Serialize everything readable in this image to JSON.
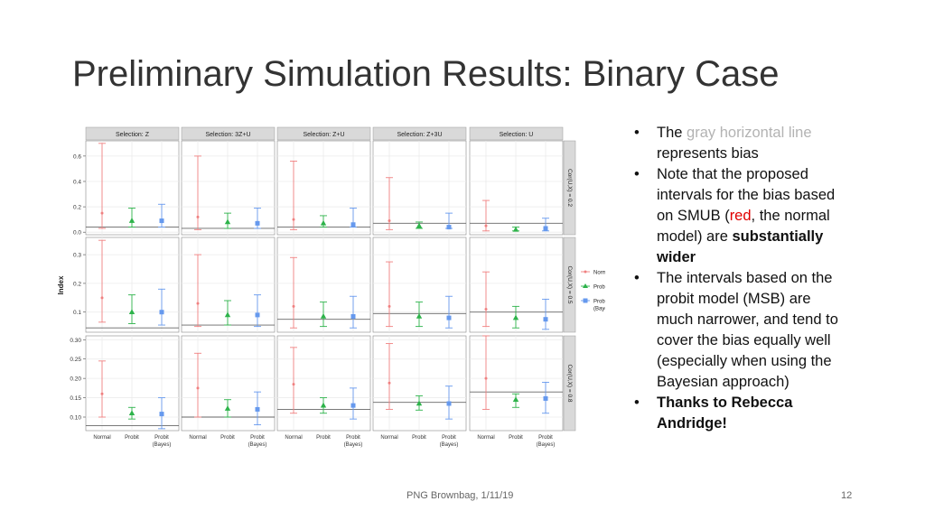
{
  "slide": {
    "title": "Preliminary Simulation Results: Binary Case",
    "footer": "PNG Brownbag, 1/11/19",
    "page_number": "12",
    "bullets": [
      {
        "parts": [
          {
            "text": "The "
          },
          {
            "text": "gray horizontal line",
            "style": "gray"
          },
          {
            "text": " represents bias"
          }
        ]
      },
      {
        "parts": [
          {
            "text": "Note that the proposed intervals for the bias based on SMUB ("
          },
          {
            "text": "red",
            "style": "red"
          },
          {
            "text": ", the normal model) are "
          },
          {
            "text": "substantially wider",
            "style": "bold"
          }
        ]
      },
      {
        "parts": [
          {
            "text": "The intervals based on the probit model (MSB) are much narrower, and tend to cover the bias equally well (especially when using the Bayesian approach)"
          }
        ]
      },
      {
        "parts": [
          {
            "text": "Thanks to Rebecca Andridge!",
            "style": "bold"
          }
        ]
      }
    ]
  },
  "chart_data": {
    "type": "scatter",
    "ylabel": "Index",
    "columns": [
      "Selection: Z",
      "Selection: 3Z+U",
      "Selection: Z+U",
      "Selection: Z+3U",
      "Selection: U"
    ],
    "rows": [
      "Cor(U,X) = 0.2",
      "Cor(U,X) = 0.5",
      "Cor(U,X) = 0.8"
    ],
    "x_categories": [
      "Normal",
      "Probit",
      "Probit\n(Bayes)"
    ],
    "legend": {
      "position": "right",
      "entries": [
        "Normal",
        "Probit",
        "Probit\n(Bayes)"
      ]
    },
    "colors": {
      "Normal": "#F08080",
      "Probit": "#2DB34A",
      "Probit (Bayes)": "#6699EE",
      "bias_line": "#666666",
      "strip": "#D9D9D9",
      "grid": "#EBEBEB"
    },
    "grid": true,
    "row_axes": [
      {
        "ylim": [
          -0.02,
          0.72
        ],
        "ticks": [
          0.0,
          0.2,
          0.4,
          0.6
        ],
        "tick_labels": [
          "0.0",
          "0.2",
          "0.4",
          "0.6"
        ]
      },
      {
        "ylim": [
          0.03,
          0.36
        ],
        "ticks": [
          0.1,
          0.2,
          0.3
        ],
        "tick_labels": [
          "0.1",
          "0.2",
          "0.3"
        ]
      },
      {
        "ylim": [
          0.065,
          0.31
        ],
        "ticks": [
          0.1,
          0.15,
          0.2,
          0.25,
          0.3
        ],
        "tick_labels": [
          "0.10",
          "0.15",
          "0.20",
          "0.25",
          "0.30"
        ]
      }
    ],
    "panels": [
      [
        {
          "bias": 0.04,
          "normal": [
            0.03,
            0.15,
            0.7
          ],
          "probit": [
            0.04,
            0.09,
            0.19
          ],
          "bayes": [
            0.04,
            0.09,
            0.22
          ]
        },
        {
          "bias": 0.03,
          "normal": [
            0.02,
            0.12,
            0.6
          ],
          "probit": [
            0.03,
            0.08,
            0.15
          ],
          "bayes": [
            0.03,
            0.07,
            0.19
          ]
        },
        {
          "bias": 0.04,
          "normal": [
            0.02,
            0.1,
            0.56
          ],
          "probit": [
            0.04,
            0.07,
            0.13
          ],
          "bayes": [
            0.04,
            0.06,
            0.19
          ]
        },
        {
          "bias": 0.07,
          "normal": [
            0.02,
            0.09,
            0.43
          ],
          "probit": [
            0.03,
            0.05,
            0.08
          ],
          "bayes": [
            0.03,
            0.04,
            0.15
          ]
        },
        {
          "bias": 0.07,
          "normal": [
            0.01,
            0.05,
            0.25
          ],
          "probit": [
            0.01,
            0.02,
            0.04
          ],
          "bayes": [
            0.01,
            0.03,
            0.11
          ]
        }
      ],
      [
        {
          "bias": 0.045,
          "normal": [
            0.065,
            0.15,
            0.35
          ],
          "probit": [
            0.06,
            0.1,
            0.16
          ],
          "bayes": [
            0.055,
            0.1,
            0.18
          ]
        },
        {
          "bias": 0.055,
          "normal": [
            0.05,
            0.13,
            0.3
          ],
          "probit": [
            0.055,
            0.09,
            0.14
          ],
          "bayes": [
            0.05,
            0.09,
            0.16
          ]
        },
        {
          "bias": 0.075,
          "normal": [
            0.045,
            0.12,
            0.29
          ],
          "probit": [
            0.05,
            0.085,
            0.135
          ],
          "bayes": [
            0.045,
            0.085,
            0.155
          ]
        },
        {
          "bias": 0.095,
          "normal": [
            0.05,
            0.12,
            0.275
          ],
          "probit": [
            0.05,
            0.085,
            0.135
          ],
          "bayes": [
            0.045,
            0.08,
            0.155
          ]
        },
        {
          "bias": 0.1,
          "normal": [
            0.05,
            0.11,
            0.24
          ],
          "probit": [
            0.045,
            0.08,
            0.12
          ],
          "bayes": [
            0.04,
            0.075,
            0.145
          ]
        }
      ],
      [
        {
          "bias": 0.078,
          "normal": [
            0.1,
            0.16,
            0.245
          ],
          "probit": [
            0.095,
            0.11,
            0.125
          ],
          "bayes": [
            0.07,
            0.108,
            0.15
          ]
        },
        {
          "bias": 0.1,
          "normal": [
            0.1,
            0.175,
            0.265
          ],
          "probit": [
            0.1,
            0.122,
            0.145
          ],
          "bayes": [
            0.08,
            0.12,
            0.165
          ]
        },
        {
          "bias": 0.12,
          "normal": [
            0.11,
            0.185,
            0.28
          ],
          "probit": [
            0.11,
            0.13,
            0.15
          ],
          "bayes": [
            0.095,
            0.13,
            0.175
          ]
        },
        {
          "bias": 0.138,
          "normal": [
            0.12,
            0.188,
            0.29
          ],
          "probit": [
            0.118,
            0.135,
            0.155
          ],
          "bayes": [
            0.095,
            0.135,
            0.18
          ]
        },
        {
          "bias": 0.165,
          "normal": [
            0.12,
            0.2,
            0.31
          ],
          "probit": [
            0.125,
            0.145,
            0.16
          ],
          "bayes": [
            0.11,
            0.148,
            0.19
          ]
        }
      ]
    ]
  }
}
